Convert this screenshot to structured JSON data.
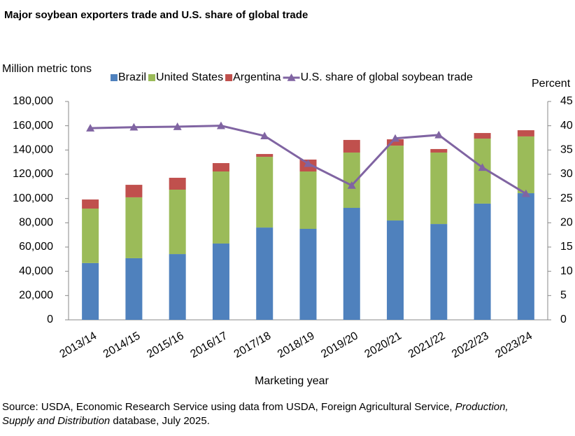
{
  "chart_data": {
    "type": "bar",
    "stacked": true,
    "title": "Major soybean exporters trade and U.S. share of global trade",
    "y_label": "Million metric tons",
    "y2_label": "Percent",
    "x_label": "Marketing year",
    "categories": [
      "2013/14",
      "2014/15",
      "2015/16",
      "2016/17",
      "2017/18",
      "2018/19",
      "2019/20",
      "2020/21",
      "2021/22",
      "2022/23",
      "2023/24"
    ],
    "series": [
      {
        "name": "Brazil",
        "color": "#4f81bd",
        "values": [
          46800,
          50800,
          54200,
          62900,
          76100,
          75000,
          92300,
          81900,
          79000,
          95800,
          104400
        ]
      },
      {
        "name": "United States",
        "color": "#9bbb59",
        "values": [
          44900,
          50200,
          53100,
          59400,
          58300,
          47300,
          45600,
          61700,
          58900,
          53600,
          46800
        ]
      },
      {
        "name": "Argentina",
        "color": "#c0504d",
        "values": [
          7500,
          10300,
          9800,
          6900,
          2300,
          9800,
          10400,
          5200,
          2900,
          4600,
          5100
        ]
      },
      {
        "name": "U.S. share of global soybean trade",
        "color": "#8064a2",
        "type": "line",
        "axis": "y2",
        "marker": "triangle",
        "values": [
          39.5,
          39.7,
          39.8,
          40.0,
          37.9,
          32.2,
          27.7,
          37.4,
          38.1,
          31.4,
          26.0
        ]
      }
    ],
    "ylim": [
      0,
      180000
    ],
    "yticks": [
      0,
      {
        "value": 20000,
        "label": "20,000"
      },
      {
        "value": 40000,
        "label": "40,000"
      },
      {
        "value": 60000,
        "label": "60,000"
      },
      {
        "value": 80000,
        "label": "80,000"
      },
      {
        "value": 100000,
        "label": "100,000"
      },
      {
        "value": 120000,
        "label": "120,000"
      },
      {
        "value": 140000,
        "label": "140,000"
      },
      {
        "value": 160000,
        "label": "160,000"
      },
      {
        "value": 180000,
        "label": "180,000"
      }
    ],
    "y2lim": [
      0,
      45
    ],
    "y2ticks": [
      0,
      5,
      10,
      15,
      20,
      25,
      30,
      35,
      40,
      45
    ],
    "grid": false,
    "legend": "top"
  },
  "source": {
    "line1": [
      "Source: USDA, Economic Research Service using data from USDA, Foreign Agricultural Service, ",
      "Production,"
    ],
    "line2": [
      "Supply and Distribution",
      " database, July 2025."
    ]
  }
}
